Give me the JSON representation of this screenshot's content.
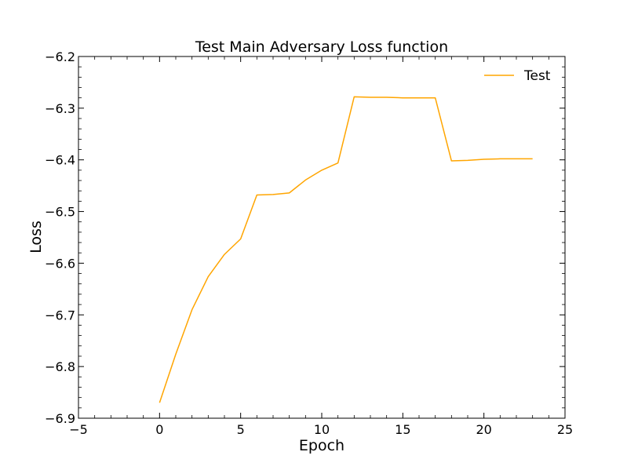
{
  "chart_data": {
    "type": "line",
    "title": "Test Main Adversary Loss function",
    "xlabel": "Epoch",
    "ylabel": "Loss",
    "xlim": [
      -5,
      25
    ],
    "ylim": [
      -6.9,
      -6.2
    ],
    "xticks": [
      -5,
      0,
      5,
      10,
      15,
      20,
      25
    ],
    "xtick_labels": [
      "−5",
      "0",
      "5",
      "10",
      "15",
      "20",
      "25"
    ],
    "yticks": [
      -6.9,
      -6.8,
      -6.7,
      -6.6,
      -6.5,
      -6.4,
      -6.3,
      -6.2
    ],
    "ytick_labels": [
      "−6.9",
      "−6.8",
      "−6.7",
      "−6.6",
      "−6.5",
      "−6.4",
      "−6.3",
      "−6.2"
    ],
    "grid": false,
    "legend": {
      "position": "top-right"
    },
    "series": [
      {
        "name": "Test",
        "color": "#FFA500",
        "x": [
          0,
          1,
          2,
          3,
          4,
          5,
          6,
          7,
          8,
          9,
          10,
          11,
          12,
          13,
          14,
          15,
          16,
          17,
          18,
          19,
          20,
          21,
          22,
          23
        ],
        "y": [
          -6.87,
          -6.776,
          -6.69,
          -6.626,
          -6.583,
          -6.553,
          -6.468,
          -6.467,
          -6.464,
          -6.439,
          -6.42,
          -6.406,
          -6.278,
          -6.279,
          -6.279,
          -6.28,
          -6.28,
          -6.28,
          -6.402,
          -6.401,
          -6.399,
          -6.398,
          -6.398,
          -6.398
        ]
      }
    ]
  }
}
